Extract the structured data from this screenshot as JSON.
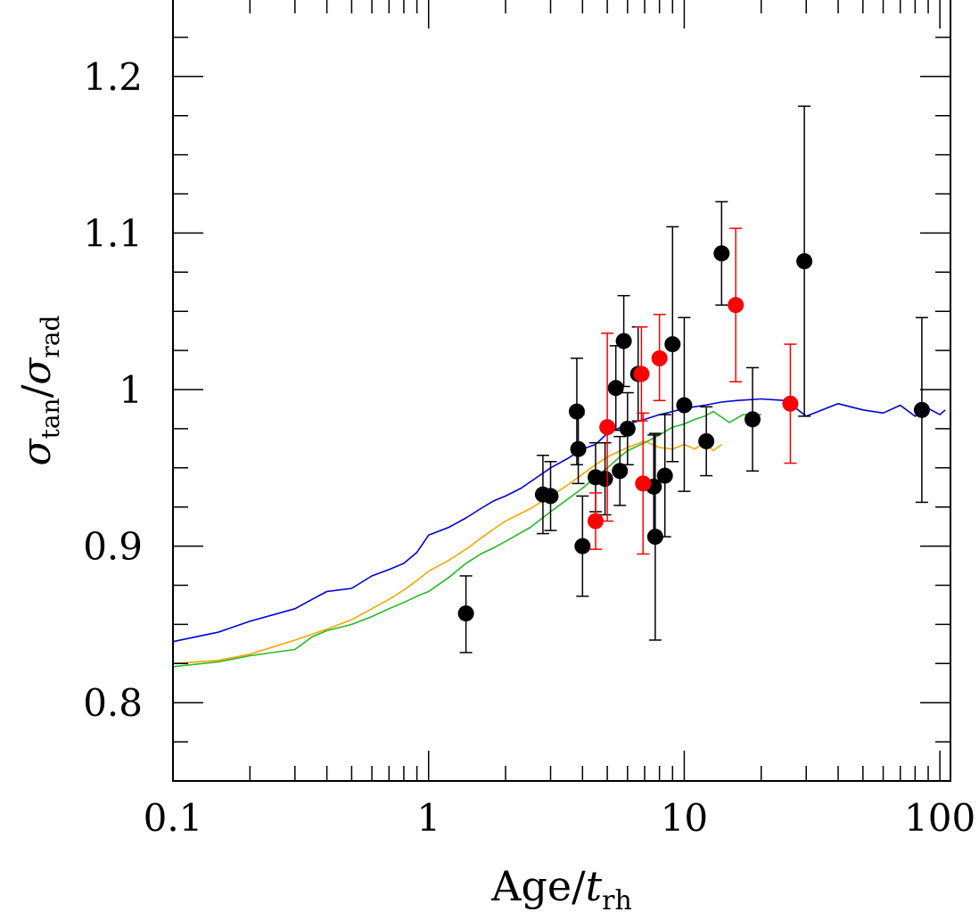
{
  "chart_data": {
    "type": "scatter",
    "xscale": "log",
    "xlim": [
      0.1,
      110
    ],
    "ylim": [
      0.75,
      1.25
    ],
    "xticks": [
      {
        "value": 0.1,
        "label": "0.1"
      },
      {
        "value": 1,
        "label": "1"
      },
      {
        "value": 10,
        "label": "10"
      },
      {
        "value": 100,
        "label": "100"
      }
    ],
    "yticks": [
      {
        "value": 0.8,
        "label": "0.8"
      },
      {
        "value": 0.9,
        "label": "0.9"
      },
      {
        "value": 1.0,
        "label": "1"
      },
      {
        "value": 1.1,
        "label": "1.1"
      },
      {
        "value": 1.2,
        "label": "1.2"
      }
    ],
    "xlabel": {
      "main": "Age/",
      "var": "t",
      "sub": "rh"
    },
    "ylabel": {
      "num": "σ",
      "num_sub": "tan",
      "slash": "/",
      "den": "σ",
      "den_sub": "rad"
    },
    "colors": {
      "blue": "#0000dd",
      "orange": "#ffa500",
      "green": "#22bb22",
      "black": "#000000",
      "red": "#ff0000"
    },
    "series": [
      {
        "name": "model-blue",
        "kind": "line",
        "color": "#0000dd",
        "points": [
          [
            0.1,
            0.839
          ],
          [
            0.15,
            0.845
          ],
          [
            0.2,
            0.852
          ],
          [
            0.3,
            0.86
          ],
          [
            0.35,
            0.866
          ],
          [
            0.4,
            0.871
          ],
          [
            0.5,
            0.873
          ],
          [
            0.6,
            0.881
          ],
          [
            0.7,
            0.885
          ],
          [
            0.8,
            0.889
          ],
          [
            0.9,
            0.896
          ],
          [
            1.0,
            0.907
          ],
          [
            1.2,
            0.912
          ],
          [
            1.4,
            0.918
          ],
          [
            1.6,
            0.924
          ],
          [
            1.8,
            0.929
          ],
          [
            2.0,
            0.932
          ],
          [
            2.3,
            0.937
          ],
          [
            2.6,
            0.943
          ],
          [
            3.0,
            0.95
          ],
          [
            3.5,
            0.956
          ],
          [
            4.0,
            0.962
          ],
          [
            4.5,
            0.965
          ],
          [
            5.0,
            0.972
          ],
          [
            5.5,
            0.975
          ],
          [
            6.0,
            0.978
          ],
          [
            7.0,
            0.981
          ],
          [
            8.0,
            0.984
          ],
          [
            9.0,
            0.986
          ],
          [
            10,
            0.988
          ],
          [
            12,
            0.99
          ],
          [
            14,
            0.992
          ],
          [
            16,
            0.993
          ],
          [
            20,
            0.994
          ],
          [
            25,
            0.993
          ],
          [
            30,
            0.983
          ],
          [
            40,
            0.991
          ],
          [
            50,
            0.987
          ],
          [
            60,
            0.985
          ],
          [
            70,
            0.99
          ],
          [
            80,
            0.983
          ],
          [
            90,
            0.988
          ],
          [
            100,
            0.984
          ],
          [
            105,
            0.987
          ]
        ]
      },
      {
        "name": "model-orange",
        "kind": "line",
        "color": "#ffa500",
        "points": [
          [
            0.1,
            0.825
          ],
          [
            0.15,
            0.827
          ],
          [
            0.2,
            0.831
          ],
          [
            0.3,
            0.84
          ],
          [
            0.4,
            0.847
          ],
          [
            0.5,
            0.853
          ],
          [
            0.6,
            0.86
          ],
          [
            0.7,
            0.866
          ],
          [
            0.8,
            0.872
          ],
          [
            0.9,
            0.878
          ],
          [
            1.0,
            0.884
          ],
          [
            1.2,
            0.891
          ],
          [
            1.4,
            0.898
          ],
          [
            1.6,
            0.905
          ],
          [
            1.8,
            0.911
          ],
          [
            2.0,
            0.916
          ],
          [
            2.5,
            0.924
          ],
          [
            3.0,
            0.932
          ],
          [
            3.5,
            0.939
          ],
          [
            4.0,
            0.946
          ],
          [
            4.5,
            0.952
          ],
          [
            5.0,
            0.957
          ],
          [
            6.0,
            0.963
          ],
          [
            7.0,
            0.967
          ],
          [
            8.0,
            0.963
          ],
          [
            9.0,
            0.962
          ],
          [
            10,
            0.965
          ],
          [
            11,
            0.962
          ],
          [
            12,
            0.966
          ],
          [
            13,
            0.961
          ],
          [
            14,
            0.965
          ]
        ]
      },
      {
        "name": "model-green",
        "kind": "line",
        "color": "#22bb22",
        "points": [
          [
            0.1,
            0.823
          ],
          [
            0.15,
            0.826
          ],
          [
            0.2,
            0.83
          ],
          [
            0.3,
            0.834
          ],
          [
            0.35,
            0.842
          ],
          [
            0.4,
            0.846
          ],
          [
            0.5,
            0.85
          ],
          [
            0.6,
            0.855
          ],
          [
            0.7,
            0.86
          ],
          [
            0.8,
            0.864
          ],
          [
            0.9,
            0.868
          ],
          [
            1.0,
            0.871
          ],
          [
            1.2,
            0.88
          ],
          [
            1.4,
            0.889
          ],
          [
            1.6,
            0.895
          ],
          [
            1.8,
            0.899
          ],
          [
            2.0,
            0.903
          ],
          [
            2.5,
            0.912
          ],
          [
            3.0,
            0.922
          ],
          [
            3.5,
            0.93
          ],
          [
            4.0,
            0.937
          ],
          [
            4.5,
            0.944
          ],
          [
            5.0,
            0.95
          ],
          [
            5.5,
            0.956
          ],
          [
            6.0,
            0.961
          ],
          [
            7.0,
            0.966
          ],
          [
            8.0,
            0.971
          ],
          [
            9.0,
            0.976
          ],
          [
            10,
            0.978
          ],
          [
            11,
            0.981
          ],
          [
            12,
            0.983
          ],
          [
            13,
            0.986
          ],
          [
            15,
            0.979
          ],
          [
            17,
            0.984
          ],
          [
            20,
            0.984
          ]
        ]
      },
      {
        "name": "black-points",
        "kind": "points",
        "color": "#000000",
        "points": [
          {
            "x": 1.4,
            "y": 0.857,
            "lo": 0.832,
            "hi": 0.881
          },
          {
            "x": 2.8,
            "y": 0.933,
            "lo": 0.908,
            "hi": 0.958
          },
          {
            "x": 3.0,
            "y": 0.932,
            "lo": 0.91,
            "hi": 0.954
          },
          {
            "x": 3.8,
            "y": 0.986,
            "lo": 0.952,
            "hi": 1.02
          },
          {
            "x": 3.85,
            "y": 0.962,
            "lo": 0.94,
            "hi": 0.984
          },
          {
            "x": 4.0,
            "y": 0.9,
            "lo": 0.868,
            "hi": 0.932
          },
          {
            "x": 4.5,
            "y": 0.944,
            "lo": 0.922,
            "hi": 0.966
          },
          {
            "x": 4.9,
            "y": 0.943,
            "lo": 0.92,
            "hi": 0.966
          },
          {
            "x": 5.4,
            "y": 1.001,
            "lo": 0.974,
            "hi": 1.028
          },
          {
            "x": 5.6,
            "y": 0.948,
            "lo": 0.926,
            "hi": 0.97
          },
          {
            "x": 5.8,
            "y": 1.031,
            "lo": 1.002,
            "hi": 1.06
          },
          {
            "x": 6.0,
            "y": 0.975,
            "lo": 0.952,
            "hi": 0.998
          },
          {
            "x": 6.6,
            "y": 1.01,
            "lo": 0.98,
            "hi": 1.04
          },
          {
            "x": 7.6,
            "y": 0.938,
            "lo": 0.905,
            "hi": 0.971
          },
          {
            "x": 7.7,
            "y": 0.906,
            "lo": 0.84,
            "hi": 0.972
          },
          {
            "x": 8.4,
            "y": 0.945,
            "lo": 0.906,
            "hi": 0.984
          },
          {
            "x": 9.0,
            "y": 1.029,
            "lo": 0.954,
            "hi": 1.104
          },
          {
            "x": 10.0,
            "y": 0.99,
            "lo": 0.935,
            "hi": 1.046
          },
          {
            "x": 12.2,
            "y": 0.967,
            "lo": 0.945,
            "hi": 0.989
          },
          {
            "x": 14.0,
            "y": 1.087,
            "lo": 1.054,
            "hi": 1.12
          },
          {
            "x": 18.5,
            "y": 0.981,
            "lo": 0.948,
            "hi": 1.014
          },
          {
            "x": 29.5,
            "y": 1.082,
            "lo": 0.983,
            "hi": 1.181
          },
          {
            "x": 85.0,
            "y": 0.987,
            "lo": 0.928,
            "hi": 1.046
          }
        ]
      },
      {
        "name": "red-points",
        "kind": "points",
        "color": "#ff0000",
        "points": [
          {
            "x": 4.5,
            "y": 0.916,
            "lo": 0.898,
            "hi": 0.934
          },
          {
            "x": 5.0,
            "y": 0.976,
            "lo": 0.916,
            "hi": 1.036
          },
          {
            "x": 6.8,
            "y": 1.01,
            "lo": 0.98,
            "hi": 1.04
          },
          {
            "x": 6.9,
            "y": 0.94,
            "lo": 0.895,
            "hi": 0.985
          },
          {
            "x": 8.0,
            "y": 1.02,
            "lo": 0.993,
            "hi": 1.048
          },
          {
            "x": 15.9,
            "y": 1.054,
            "lo": 1.005,
            "hi": 1.103
          },
          {
            "x": 26.0,
            "y": 0.991,
            "lo": 0.953,
            "hi": 1.029
          }
        ]
      }
    ]
  }
}
